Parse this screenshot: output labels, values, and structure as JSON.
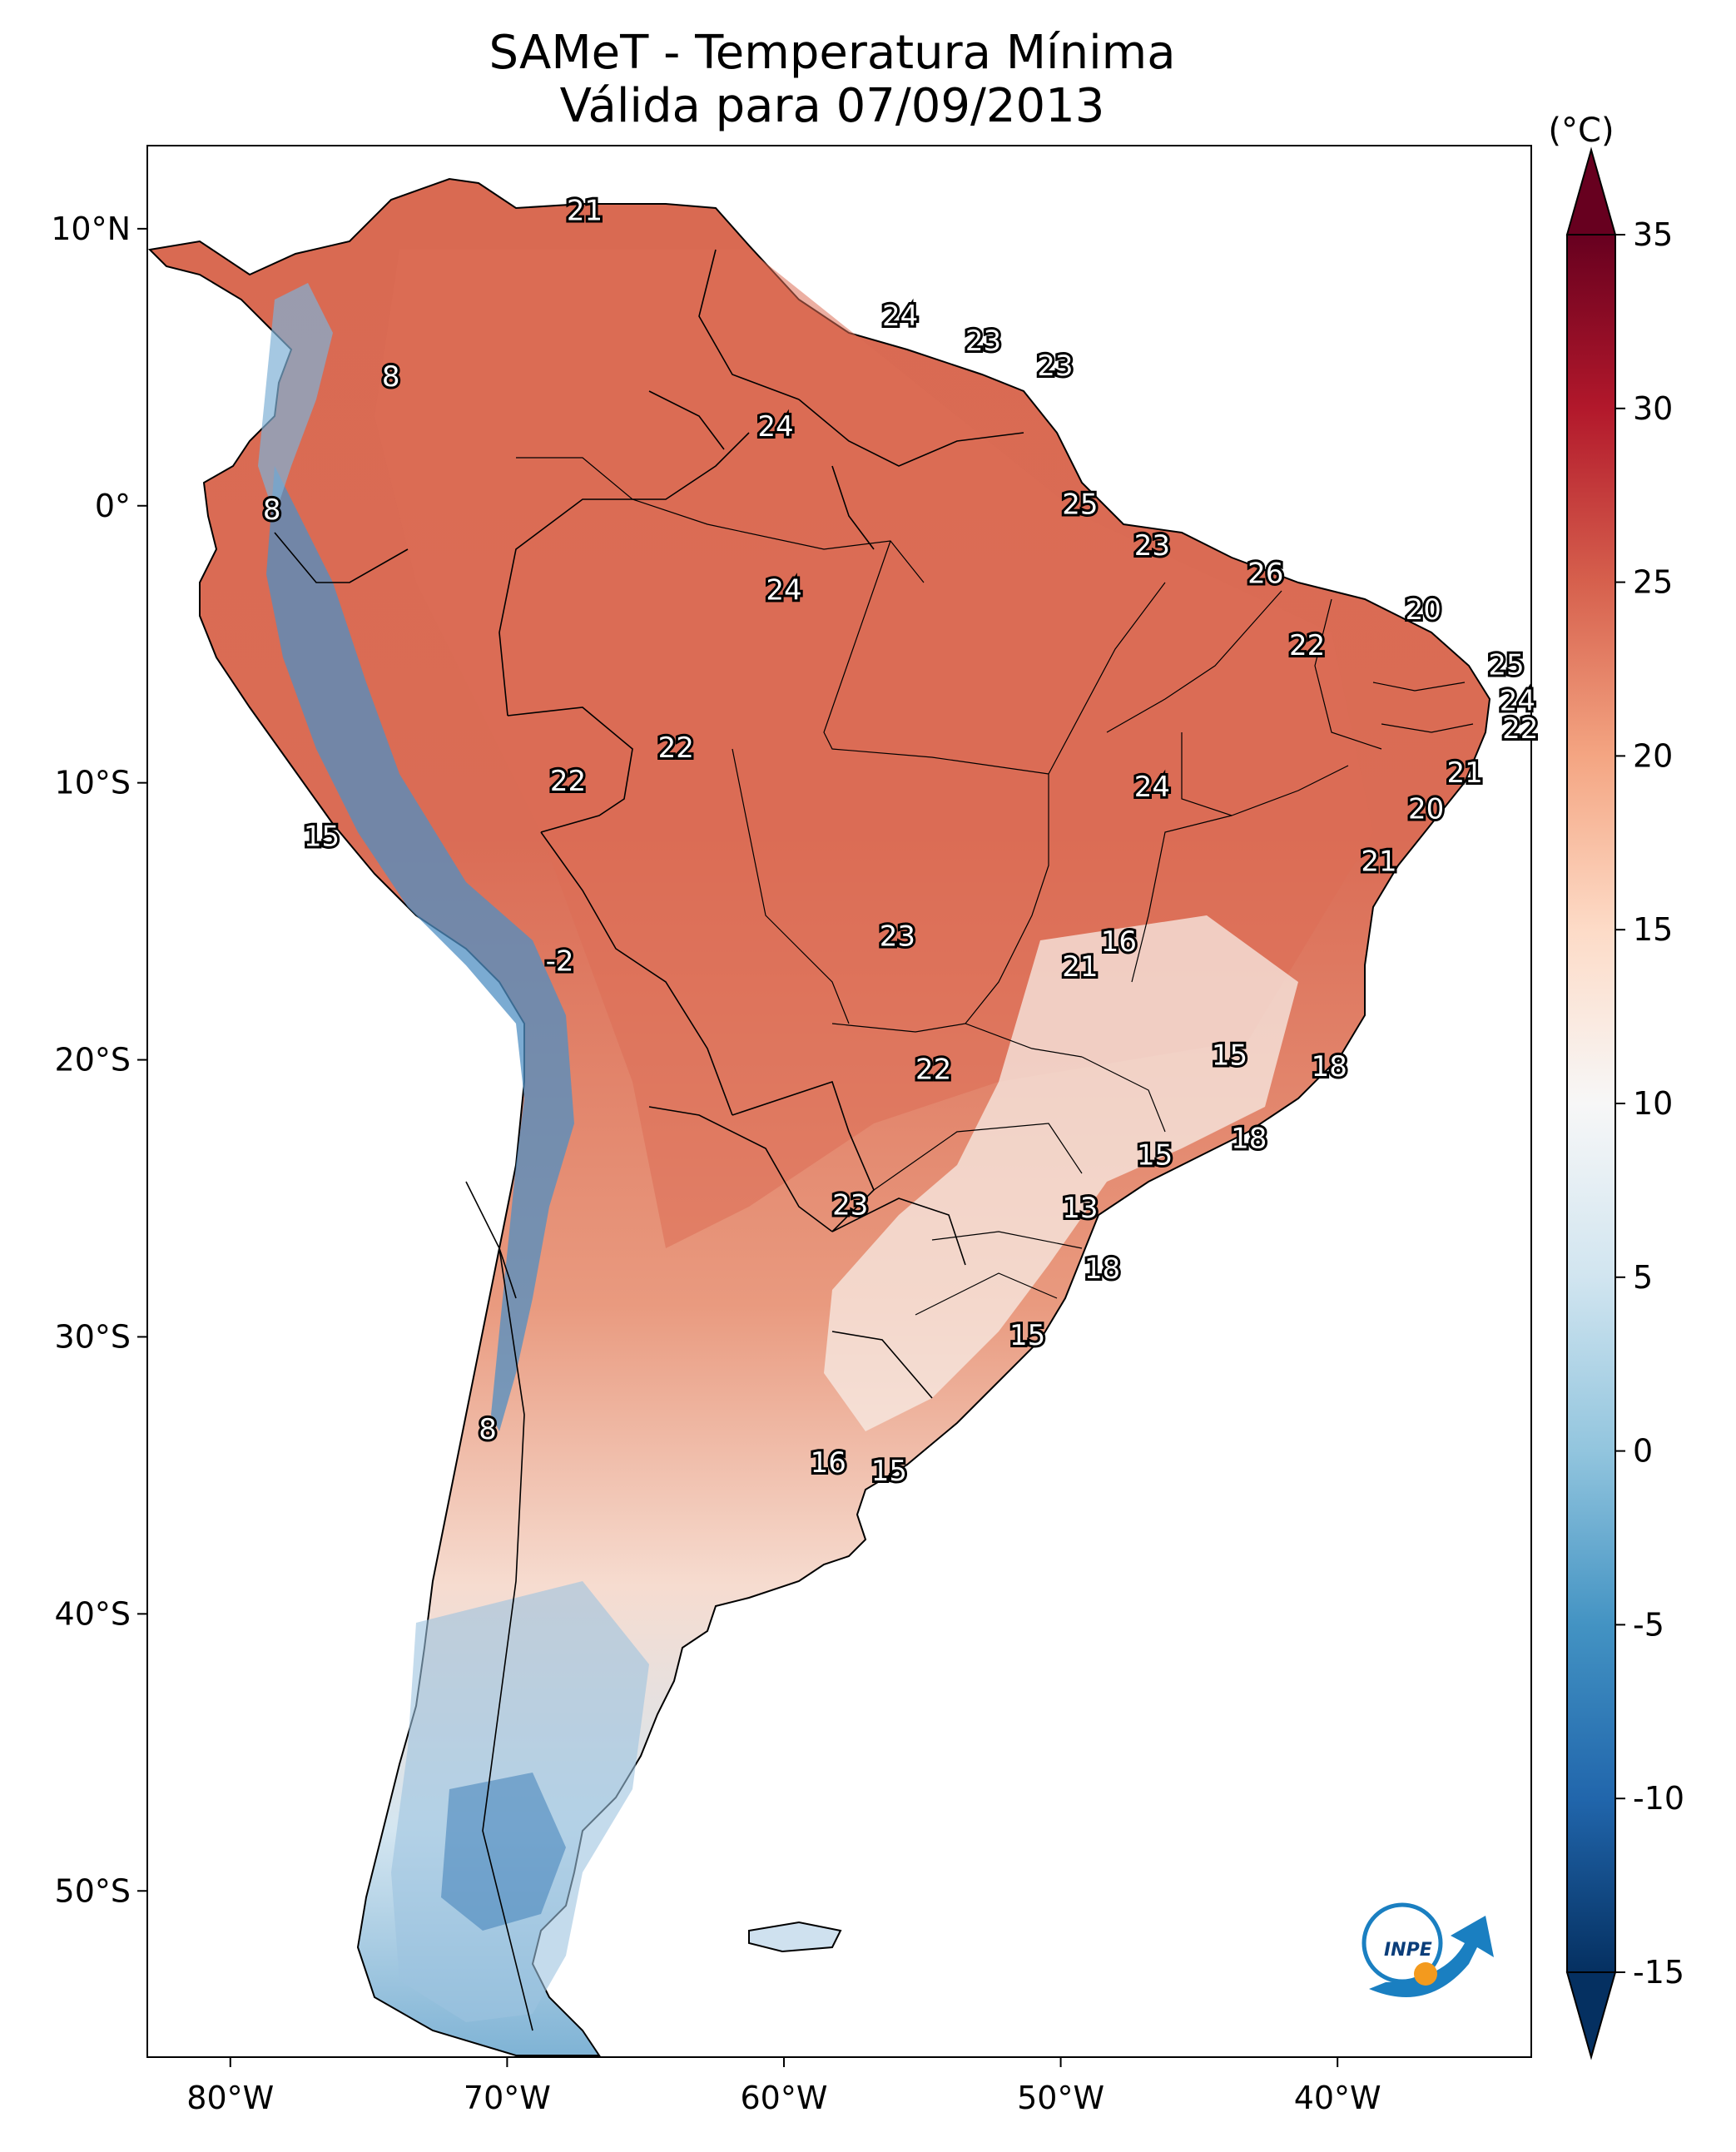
{
  "title": {
    "line1": "SAMeT - Temperatura Mínima",
    "line2": "Válida para 07/09/2013"
  },
  "map": {
    "lon_range": [
      -83,
      -33
    ],
    "lat_range": [
      -56,
      13
    ],
    "lon_ticks": [
      "80°W",
      "70°W",
      "60°W",
      "50°W",
      "40°W"
    ],
    "lon_tick_values": [
      -80,
      -70,
      -60,
      -50,
      -40
    ],
    "lat_ticks": [
      "10°N",
      "0°",
      "10°S",
      "20°S",
      "30°S",
      "40°S",
      "50°S"
    ],
    "lat_tick_values": [
      10,
      0,
      -10,
      -20,
      -30,
      -40,
      -50
    ],
    "ocean_color": "#ffffff",
    "border_color": "#000000"
  },
  "colorbar": {
    "unit": "(°C)",
    "ticks": [
      "35",
      "30",
      "25",
      "20",
      "15",
      "10",
      "5",
      "0",
      "-5",
      "-10",
      "-15"
    ],
    "tick_values": [
      35,
      30,
      25,
      20,
      15,
      10,
      5,
      0,
      -5,
      -10,
      -15
    ],
    "range": [
      -15,
      35
    ],
    "colormap": "RdBu_r",
    "colors": [
      "#053061",
      "#2166ac",
      "#4393c3",
      "#92c5de",
      "#d1e5f0",
      "#f7f7f7",
      "#fddbc7",
      "#f4a582",
      "#d6604d",
      "#b2182b",
      "#67001f"
    ]
  },
  "station_labels": [
    {
      "text": "21",
      "lon": -67.2,
      "lat": 10.6
    },
    {
      "text": "8",
      "lon": -74.2,
      "lat": 4.6
    },
    {
      "text": "24",
      "lon": -55.8,
      "lat": 6.8
    },
    {
      "text": "23",
      "lon": -52.8,
      "lat": 5.9
    },
    {
      "text": "23",
      "lon": -50.2,
      "lat": 5.0
    },
    {
      "text": "24",
      "lon": -60.3,
      "lat": 2.8
    },
    {
      "text": "8",
      "lon": -78.5,
      "lat": -0.2
    },
    {
      "text": "25",
      "lon": -49.3,
      "lat": 0.0
    },
    {
      "text": "23",
      "lon": -46.7,
      "lat": -1.5
    },
    {
      "text": "26",
      "lon": -42.6,
      "lat": -2.5
    },
    {
      "text": "24",
      "lon": -60.0,
      "lat": -3.1
    },
    {
      "text": "20",
      "lon": -36.9,
      "lat": -3.8
    },
    {
      "text": "22",
      "lon": -41.1,
      "lat": -5.1
    },
    {
      "text": "25",
      "lon": -33.9,
      "lat": -5.8
    },
    {
      "text": "24",
      "lon": -33.5,
      "lat": -7.1
    },
    {
      "text": "22",
      "lon": -33.4,
      "lat": -8.1
    },
    {
      "text": "22",
      "lon": -63.9,
      "lat": -8.8
    },
    {
      "text": "22",
      "lon": -67.8,
      "lat": -10.0
    },
    {
      "text": "21",
      "lon": -35.4,
      "lat": -9.7
    },
    {
      "text": "24",
      "lon": -46.7,
      "lat": -10.2
    },
    {
      "text": "20",
      "lon": -36.8,
      "lat": -11.0
    },
    {
      "text": "15",
      "lon": -76.7,
      "lat": -12.0
    },
    {
      "text": "21",
      "lon": -38.5,
      "lat": -12.9
    },
    {
      "text": "23",
      "lon": -55.9,
      "lat": -15.6
    },
    {
      "text": "16",
      "lon": -47.9,
      "lat": -15.8
    },
    {
      "text": "-2",
      "lon": -68.1,
      "lat": -16.5
    },
    {
      "text": "21",
      "lon": -49.3,
      "lat": -16.7
    },
    {
      "text": "15",
      "lon": -43.9,
      "lat": -19.9
    },
    {
      "text": "18",
      "lon": -40.3,
      "lat": -20.3
    },
    {
      "text": "22",
      "lon": -54.6,
      "lat": -20.4
    },
    {
      "text": "18",
      "lon": -43.2,
      "lat": -22.9
    },
    {
      "text": "15",
      "lon": -46.6,
      "lat": -23.5
    },
    {
      "text": "23",
      "lon": -57.6,
      "lat": -25.3
    },
    {
      "text": "13",
      "lon": -49.3,
      "lat": -25.4
    },
    {
      "text": "18",
      "lon": -48.5,
      "lat": -27.6
    },
    {
      "text": "15",
      "lon": -51.2,
      "lat": -30.0
    },
    {
      "text": "8",
      "lon": -70.7,
      "lat": -33.4
    },
    {
      "text": "16",
      "lon": -58.4,
      "lat": -34.6
    },
    {
      "text": "15",
      "lon": -56.2,
      "lat": -34.9
    }
  ]
}
